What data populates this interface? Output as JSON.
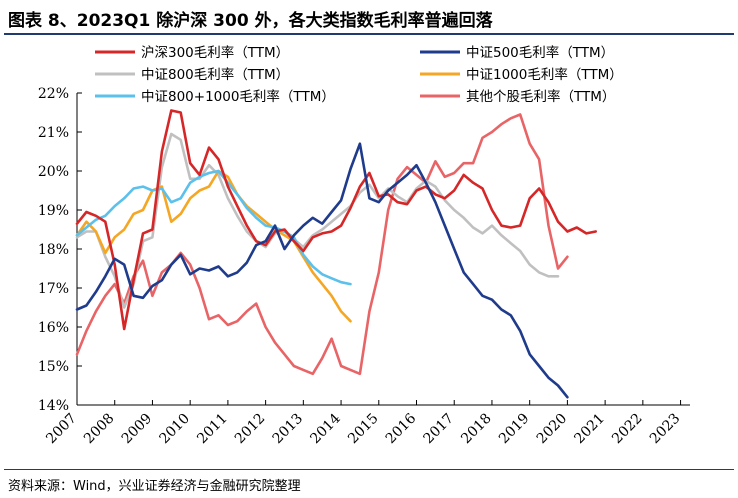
{
  "title": "图表 8、2023Q1 除沪深 300 外，各大类指数毛利率普遍回落",
  "source": "资料来源：Wind，兴业证券经济与金融研究院整理",
  "chart_data": {
    "type": "line",
    "title": "图表 8、2023Q1 除沪深 300 外，各大类指数毛利率普遍回落",
    "xlabel": "",
    "ylabel": "",
    "xlim": [
      2007,
      2023.25
    ],
    "ylim": [
      14,
      22
    ],
    "y_ticks": [
      "14%",
      "15%",
      "16%",
      "17%",
      "18%",
      "19%",
      "20%",
      "21%",
      "22%"
    ],
    "x_ticks": [
      "2007",
      "2008",
      "2009",
      "2010",
      "2011",
      "2012",
      "2013",
      "2014",
      "2015",
      "2016",
      "2017",
      "2018",
      "2019",
      "2020",
      "2021",
      "2022",
      "2023"
    ],
    "grid": false,
    "legend_position": "top",
    "series": [
      {
        "name": "沪深300毛利率（TTM）",
        "color": "#d62728",
        "points": [
          [
            2007,
            18.65
          ],
          [
            2007.25,
            18.95
          ],
          [
            2007.5,
            18.85
          ],
          [
            2007.75,
            18.7
          ],
          [
            2008,
            17.6
          ],
          [
            2008.25,
            15.95
          ],
          [
            2008.5,
            17.2
          ],
          [
            2008.75,
            18.4
          ],
          [
            2009,
            18.5
          ],
          [
            2009.25,
            20.5
          ],
          [
            2009.5,
            21.55
          ],
          [
            2009.75,
            21.5
          ],
          [
            2010,
            20.2
          ],
          [
            2010.25,
            19.9
          ],
          [
            2010.5,
            20.6
          ],
          [
            2010.75,
            20.3
          ],
          [
            2011,
            19.6
          ],
          [
            2011.25,
            19.1
          ],
          [
            2011.5,
            18.6
          ],
          [
            2011.75,
            18.2
          ],
          [
            2012,
            18.1
          ],
          [
            2012.25,
            18.45
          ],
          [
            2012.5,
            18.5
          ],
          [
            2012.75,
            18.2
          ],
          [
            2013,
            17.95
          ],
          [
            2013.25,
            18.3
          ],
          [
            2013.5,
            18.4
          ],
          [
            2013.75,
            18.45
          ],
          [
            2014,
            18.6
          ],
          [
            2014.25,
            19.05
          ],
          [
            2014.5,
            19.6
          ],
          [
            2014.75,
            19.95
          ],
          [
            2015,
            19.35
          ],
          [
            2015.25,
            19.4
          ],
          [
            2015.5,
            19.2
          ],
          [
            2015.75,
            19.15
          ],
          [
            2016,
            19.5
          ],
          [
            2016.25,
            19.6
          ],
          [
            2016.5,
            19.4
          ],
          [
            2016.75,
            19.3
          ],
          [
            2017,
            19.5
          ],
          [
            2017.25,
            19.9
          ],
          [
            2017.5,
            19.7
          ],
          [
            2017.75,
            19.55
          ],
          [
            2018,
            19.0
          ],
          [
            2018.25,
            18.6
          ],
          [
            2018.5,
            18.55
          ],
          [
            2018.75,
            18.6
          ],
          [
            2019,
            19.3
          ],
          [
            2019.25,
            19.55
          ],
          [
            2019.5,
            19.2
          ],
          [
            2019.75,
            18.7
          ],
          [
            2020,
            18.45
          ],
          [
            2020.25,
            18.55
          ],
          [
            2020.5,
            18.4
          ],
          [
            2020.75,
            18.45
          ]
        ]
      },
      {
        "name": "中证500毛利率（TTM）",
        "color": "#1f3b8c",
        "points": [
          [
            2007,
            16.45
          ],
          [
            2007.25,
            16.55
          ],
          [
            2007.5,
            16.9
          ],
          [
            2007.75,
            17.3
          ],
          [
            2008,
            17.75
          ],
          [
            2008.25,
            17.6
          ],
          [
            2008.5,
            16.8
          ],
          [
            2008.75,
            16.75
          ],
          [
            2009,
            17.05
          ],
          [
            2009.25,
            17.2
          ],
          [
            2009.5,
            17.6
          ],
          [
            2009.75,
            17.85
          ],
          [
            2010,
            17.35
          ],
          [
            2010.25,
            17.5
          ],
          [
            2010.5,
            17.45
          ],
          [
            2010.75,
            17.55
          ],
          [
            2011,
            17.3
          ],
          [
            2011.25,
            17.4
          ],
          [
            2011.5,
            17.65
          ],
          [
            2011.75,
            18.1
          ],
          [
            2012,
            18.2
          ],
          [
            2012.25,
            18.6
          ],
          [
            2012.5,
            18.0
          ],
          [
            2012.75,
            18.35
          ],
          [
            2013,
            18.6
          ],
          [
            2013.25,
            18.8
          ],
          [
            2013.5,
            18.65
          ],
          [
            2013.75,
            18.95
          ],
          [
            2014,
            19.25
          ],
          [
            2014.25,
            20.05
          ],
          [
            2014.5,
            20.7
          ],
          [
            2014.75,
            19.3
          ],
          [
            2015,
            19.2
          ],
          [
            2015.25,
            19.5
          ],
          [
            2015.5,
            19.7
          ],
          [
            2015.75,
            19.9
          ],
          [
            2016,
            20.15
          ],
          [
            2016.25,
            19.7
          ],
          [
            2016.5,
            19.2
          ],
          [
            2016.75,
            18.6
          ],
          [
            2017,
            18.0
          ],
          [
            2017.25,
            17.4
          ],
          [
            2017.5,
            17.1
          ],
          [
            2017.75,
            16.8
          ],
          [
            2018,
            16.7
          ],
          [
            2018.25,
            16.45
          ],
          [
            2018.5,
            16.3
          ],
          [
            2018.75,
            15.9
          ],
          [
            2019,
            15.3
          ],
          [
            2019.25,
            15.0
          ],
          [
            2019.5,
            14.7
          ],
          [
            2019.75,
            14.5
          ],
          [
            2020,
            14.2
          ]
        ]
      },
      {
        "name": "中证800毛利率（TTM）",
        "color": "#c0c0c0",
        "points": [
          [
            2007,
            18.3
          ],
          [
            2007.25,
            18.45
          ],
          [
            2007.5,
            18.45
          ],
          [
            2007.75,
            17.8
          ],
          [
            2008,
            17.3
          ],
          [
            2008.25,
            16.5
          ],
          [
            2008.5,
            17.1
          ],
          [
            2008.75,
            18.2
          ],
          [
            2009,
            18.3
          ],
          [
            2009.25,
            20.1
          ],
          [
            2009.5,
            20.95
          ],
          [
            2009.75,
            20.8
          ],
          [
            2010,
            19.8
          ],
          [
            2010.25,
            19.8
          ],
          [
            2010.5,
            20.15
          ],
          [
            2010.75,
            19.9
          ],
          [
            2011,
            19.3
          ],
          [
            2011.25,
            18.85
          ],
          [
            2011.5,
            18.45
          ],
          [
            2011.75,
            18.2
          ],
          [
            2012,
            18.05
          ],
          [
            2012.25,
            18.4
          ],
          [
            2012.5,
            18.45
          ],
          [
            2012.75,
            18.25
          ],
          [
            2013,
            18.05
          ],
          [
            2013.25,
            18.35
          ],
          [
            2013.5,
            18.5
          ],
          [
            2013.75,
            18.7
          ],
          [
            2014,
            18.9
          ],
          [
            2014.25,
            19.1
          ],
          [
            2014.5,
            19.45
          ],
          [
            2014.75,
            19.65
          ],
          [
            2015,
            19.3
          ],
          [
            2015.25,
            19.55
          ],
          [
            2015.5,
            19.35
          ],
          [
            2015.75,
            19.2
          ],
          [
            2016,
            19.55
          ],
          [
            2016.25,
            19.75
          ],
          [
            2016.5,
            19.6
          ],
          [
            2016.75,
            19.25
          ],
          [
            2017,
            19.0
          ],
          [
            2017.25,
            18.8
          ],
          [
            2017.5,
            18.55
          ],
          [
            2017.75,
            18.4
          ],
          [
            2018,
            18.6
          ],
          [
            2018.25,
            18.35
          ],
          [
            2018.5,
            18.15
          ],
          [
            2018.75,
            17.95
          ],
          [
            2019,
            17.6
          ],
          [
            2019.25,
            17.4
          ],
          [
            2019.5,
            17.3
          ],
          [
            2019.75,
            17.3
          ]
        ]
      },
      {
        "name": "中证1000毛利率（TTM）",
        "color": "#f5a623",
        "points": [
          [
            2007,
            18.35
          ],
          [
            2007.25,
            18.7
          ],
          [
            2007.5,
            18.45
          ],
          [
            2007.75,
            17.9
          ],
          [
            2008,
            18.3
          ],
          [
            2008.25,
            18.5
          ],
          [
            2008.5,
            18.9
          ],
          [
            2008.75,
            19.0
          ],
          [
            2009,
            19.5
          ],
          [
            2009.25,
            19.6
          ],
          [
            2009.5,
            18.7
          ],
          [
            2009.75,
            18.9
          ],
          [
            2010,
            19.3
          ],
          [
            2010.25,
            19.5
          ],
          [
            2010.5,
            19.6
          ],
          [
            2010.75,
            20.0
          ],
          [
            2011,
            19.85
          ],
          [
            2011.25,
            19.4
          ],
          [
            2011.5,
            19.1
          ],
          [
            2011.75,
            18.9
          ],
          [
            2012,
            18.7
          ],
          [
            2012.25,
            18.5
          ],
          [
            2012.5,
            18.35
          ],
          [
            2012.75,
            18.2
          ],
          [
            2013,
            17.8
          ],
          [
            2013.25,
            17.4
          ],
          [
            2013.5,
            17.1
          ],
          [
            2013.75,
            16.8
          ],
          [
            2014,
            16.4
          ],
          [
            2014.25,
            16.15
          ]
        ]
      },
      {
        "name": "中证800+1000毛利率（TTM）",
        "color": "#5bc0eb",
        "points": [
          [
            2007,
            18.35
          ],
          [
            2007.25,
            18.55
          ],
          [
            2007.5,
            18.75
          ],
          [
            2007.75,
            18.85
          ],
          [
            2008,
            19.1
          ],
          [
            2008.25,
            19.3
          ],
          [
            2008.5,
            19.55
          ],
          [
            2008.75,
            19.6
          ],
          [
            2009,
            19.5
          ],
          [
            2009.25,
            19.55
          ],
          [
            2009.5,
            19.2
          ],
          [
            2009.75,
            19.3
          ],
          [
            2010,
            19.7
          ],
          [
            2010.25,
            19.85
          ],
          [
            2010.5,
            19.95
          ],
          [
            2010.75,
            20.0
          ],
          [
            2011,
            19.7
          ],
          [
            2011.25,
            19.4
          ],
          [
            2011.5,
            19.05
          ],
          [
            2011.75,
            18.8
          ],
          [
            2012,
            18.6
          ],
          [
            2012.25,
            18.55
          ],
          [
            2012.5,
            18.45
          ],
          [
            2012.75,
            18.3
          ],
          [
            2013,
            17.85
          ],
          [
            2013.25,
            17.55
          ],
          [
            2013.5,
            17.35
          ],
          [
            2013.75,
            17.25
          ],
          [
            2014,
            17.15
          ],
          [
            2014.25,
            17.1
          ]
        ]
      },
      {
        "name": "其他个股毛利率（TTM）",
        "color": "#e86466",
        "points": [
          [
            2007,
            15.3
          ],
          [
            2007.25,
            15.9
          ],
          [
            2007.5,
            16.4
          ],
          [
            2007.75,
            16.8
          ],
          [
            2008,
            17.1
          ],
          [
            2008.25,
            16.6
          ],
          [
            2008.5,
            17.3
          ],
          [
            2008.75,
            17.7
          ],
          [
            2009,
            16.8
          ],
          [
            2009.25,
            17.4
          ],
          [
            2009.5,
            17.6
          ],
          [
            2009.75,
            17.9
          ],
          [
            2010,
            17.6
          ],
          [
            2010.25,
            17.0
          ],
          [
            2010.5,
            16.2
          ],
          [
            2010.75,
            16.3
          ],
          [
            2011,
            16.05
          ],
          [
            2011.25,
            16.15
          ],
          [
            2011.5,
            16.4
          ],
          [
            2011.75,
            16.6
          ],
          [
            2012,
            16.0
          ],
          [
            2012.25,
            15.6
          ],
          [
            2012.5,
            15.3
          ],
          [
            2012.75,
            15.0
          ],
          [
            2013,
            14.9
          ],
          [
            2013.25,
            14.8
          ],
          [
            2013.5,
            15.2
          ],
          [
            2013.75,
            15.7
          ],
          [
            2014,
            15.0
          ],
          [
            2014.25,
            14.9
          ],
          [
            2014.5,
            14.8
          ],
          [
            2014.75,
            16.4
          ],
          [
            2015,
            17.4
          ],
          [
            2015.25,
            19.0
          ],
          [
            2015.5,
            19.8
          ],
          [
            2015.75,
            20.1
          ],
          [
            2016,
            19.9
          ],
          [
            2016.25,
            19.7
          ],
          [
            2016.5,
            20.25
          ],
          [
            2016.75,
            19.85
          ],
          [
            2017,
            19.95
          ],
          [
            2017.25,
            20.2
          ],
          [
            2017.5,
            20.2
          ],
          [
            2017.75,
            20.85
          ],
          [
            2018,
            21.0
          ],
          [
            2018.25,
            21.2
          ],
          [
            2018.5,
            21.35
          ],
          [
            2018.75,
            21.45
          ],
          [
            2019,
            20.7
          ],
          [
            2019.25,
            20.3
          ],
          [
            2019.5,
            18.6
          ],
          [
            2019.75,
            17.5
          ],
          [
            2020,
            17.8
          ]
        ]
      }
    ]
  },
  "legend": [
    {
      "label": "沪深300毛利率（TTM）",
      "color": "#d62728"
    },
    {
      "label": "中证500毛利率（TTM）",
      "color": "#1f3b8c"
    },
    {
      "label": "中证800毛利率（TTM）",
      "color": "#c0c0c0"
    },
    {
      "label": "中证1000毛利率（TTM）",
      "color": "#f5a623"
    },
    {
      "label": "中证800+1000毛利率（TTM）",
      "color": "#5bc0eb"
    },
    {
      "label": "其他个股毛利率（TTM）",
      "color": "#e86466"
    }
  ]
}
